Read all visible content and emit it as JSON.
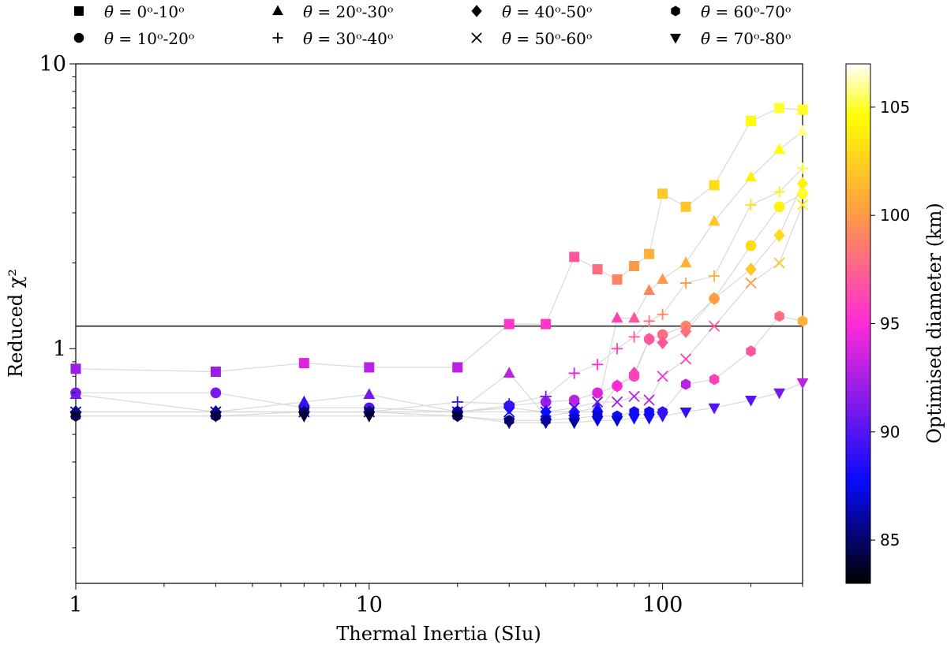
{
  "chart_data": {
    "type": "scatter",
    "xlabel": "Thermal Inertia (SIu)",
    "ylabel": "Reduced χ²",
    "xscale": "log",
    "yscale": "log",
    "xlim": [
      1,
      300
    ],
    "ylim": [
      0.15,
      10
    ],
    "x_ticks": [
      {
        "value": 1,
        "label": "1"
      },
      {
        "value": 10,
        "label": "10"
      },
      {
        "value": 100,
        "label": "100"
      }
    ],
    "y_ticks": [
      {
        "value": 1,
        "label": "1"
      },
      {
        "value": 10,
        "label": "10"
      }
    ],
    "reference_line": {
      "y": 1.2
    },
    "colorbar": {
      "label": "Optimised diameter (km)",
      "min": 83,
      "max": 107,
      "ticks": [
        {
          "value": 85,
          "label": "85"
        },
        {
          "value": 90,
          "label": "90"
        },
        {
          "value": 95,
          "label": "95"
        },
        {
          "value": 100,
          "label": "100"
        },
        {
          "value": 105,
          "label": "105"
        }
      ],
      "colormap": "plasma-like",
      "stops": [
        "#000000",
        "#0a0aff",
        "#ff2bd6",
        "#ffa040",
        "#ffff00",
        "#ffffff"
      ]
    },
    "x_values": [
      1,
      3,
      6,
      10,
      20,
      30,
      40,
      50,
      60,
      70,
      80,
      90,
      100,
      120,
      150,
      200,
      250,
      300
    ],
    "series": [
      {
        "name": "θ = 0°-10°",
        "legend_text": "= 0ᵒ-10ᵒ",
        "marker": "square",
        "y": [
          0.85,
          0.83,
          0.89,
          0.86,
          0.86,
          1.22,
          1.22,
          2.1,
          1.9,
          1.75,
          1.95,
          2.15,
          3.5,
          3.15,
          3.75,
          6.3,
          7.0,
          6.9
        ],
        "diameter": [
          92,
          92,
          94,
          93,
          93,
          95.5,
          95.5,
          97,
          98,
          99,
          100,
          101,
          102,
          102,
          103,
          104.5,
          105,
          105
        ]
      },
      {
        "name": "θ = 10°-20°",
        "legend_text": "= 10ᵒ-20ᵒ",
        "marker": "circle",
        "y": [
          0.7,
          0.7,
          0.62,
          0.62,
          0.6,
          0.63,
          0.65,
          0.66,
          0.7,
          0.74,
          0.8,
          1.08,
          1.12,
          1.2,
          1.5,
          2.3,
          3.15,
          3.5
        ],
        "diameter": [
          91,
          91,
          90,
          90,
          89,
          89,
          92,
          93,
          94,
          95,
          96,
          97,
          98,
          99,
          101,
          103,
          104,
          105
        ]
      },
      {
        "name": "θ = 20°-30°",
        "legend_text": "= 20ᵒ-30ᵒ",
        "marker": "triangle-up",
        "y": [
          0.69,
          0.6,
          0.65,
          0.69,
          0.6,
          0.82,
          0.58,
          0.6,
          0.62,
          1.28,
          1.28,
          1.6,
          1.75,
          2.0,
          2.8,
          4.0,
          5.0,
          5.8
        ],
        "diameter": [
          91,
          88,
          89,
          91,
          88,
          93,
          87,
          88,
          89,
          96,
          97,
          99,
          100,
          101,
          102,
          104,
          104.5,
          106
        ]
      },
      {
        "name": "θ = 30°-40°",
        "legend_text": "= 30ᵒ-40ᵒ",
        "marker": "plus",
        "y": [
          0.6,
          0.6,
          0.6,
          0.6,
          0.65,
          0.64,
          0.68,
          0.82,
          0.88,
          1.0,
          1.1,
          1.25,
          1.32,
          1.7,
          1.8,
          3.2,
          3.55,
          4.3
        ],
        "diameter": [
          87,
          87,
          87,
          87,
          89,
          89,
          91,
          94,
          95,
          96,
          97,
          98,
          99,
          100,
          101,
          103,
          104,
          105
        ]
      },
      {
        "name": "θ = 40°-50°",
        "legend_text": "= 40ᵒ-50ᵒ",
        "marker": "diamond",
        "y": [
          0.6,
          0.6,
          0.6,
          0.6,
          0.6,
          0.62,
          0.6,
          0.6,
          0.6,
          0.74,
          0.82,
          1.08,
          1.05,
          1.15,
          1.5,
          1.9,
          2.5,
          3.8
        ],
        "diameter": [
          86,
          86,
          86,
          86,
          86,
          89,
          88,
          88,
          88,
          95,
          96,
          97,
          97,
          98,
          100,
          102,
          103,
          104
        ]
      },
      {
        "name": "θ = 50°-60°",
        "legend_text": "= 50ᵒ-60ᵒ",
        "marker": "x",
        "y": [
          0.6,
          0.6,
          0.6,
          0.6,
          0.6,
          0.6,
          0.6,
          0.62,
          0.65,
          0.65,
          0.68,
          0.66,
          0.8,
          0.92,
          1.2,
          1.7,
          2.0,
          3.2
        ],
        "diameter": [
          86,
          86,
          86,
          86,
          86,
          88,
          88,
          89,
          90,
          92,
          93,
          93,
          95,
          96,
          97,
          100,
          102,
          104
        ]
      },
      {
        "name": "θ = 60°-70°",
        "legend_text": "= 60ᵒ-70ᵒ",
        "marker": "hexagon",
        "y": [
          0.58,
          0.58,
          0.6,
          0.6,
          0.58,
          0.56,
          0.56,
          0.57,
          0.58,
          0.58,
          0.6,
          0.6,
          0.6,
          0.75,
          0.78,
          0.98,
          1.3,
          1.25
        ],
        "diameter": [
          85,
          85,
          85,
          85,
          85,
          85,
          86,
          87,
          87,
          88,
          88,
          88,
          89,
          93,
          96,
          97,
          98,
          101
        ]
      },
      {
        "name": "θ = 70°-80°",
        "legend_text": "= 70ᵒ-80ᵒ",
        "marker": "triangle-down",
        "y": [
          0.58,
          0.58,
          0.58,
          0.58,
          0.58,
          0.55,
          0.55,
          0.55,
          0.56,
          0.56,
          0.57,
          0.57,
          0.58,
          0.6,
          0.62,
          0.66,
          0.7,
          0.76
        ],
        "diameter": [
          84,
          84,
          84,
          84,
          84,
          85,
          86,
          86,
          87,
          87,
          88,
          88,
          89,
          89,
          90,
          90,
          91,
          93
        ]
      }
    ]
  }
}
